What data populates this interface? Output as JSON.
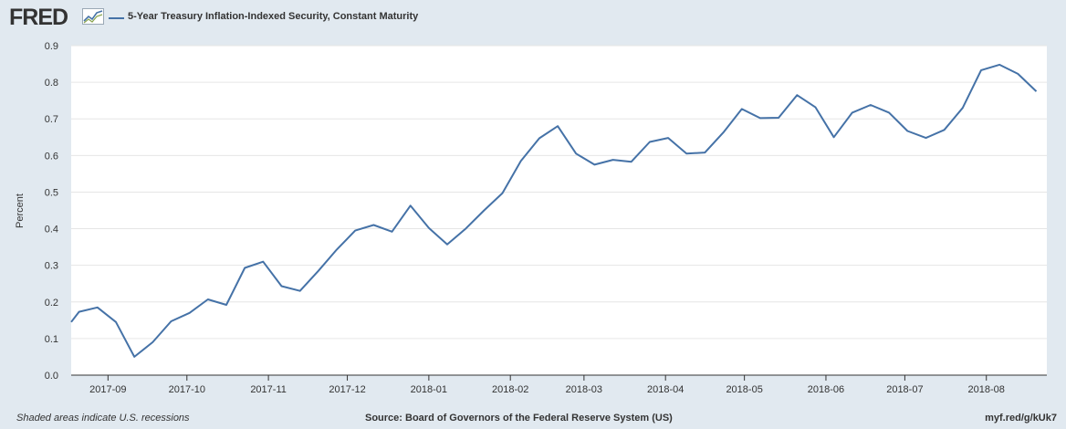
{
  "header": {
    "logo": "FRED",
    "series_name": "5-Year Treasury Inflation-Indexed Security, Constant Maturity"
  },
  "footer": {
    "recession_note": "Shaded areas indicate U.S. recessions",
    "source": "Source: Board of Governors of the Federal Reserve System (US)",
    "short_url": "myf.red/g/kUk7"
  },
  "colors": {
    "background": "#e1e9f0",
    "plot_background": "#ffffff",
    "series": "#4572a7",
    "grid": "#e6e6e6",
    "text": "#333333"
  },
  "chart_data": {
    "type": "line",
    "ylabel": "Percent",
    "xlabel": "",
    "ylim": [
      0,
      0.9
    ],
    "yticks": [
      "0.0",
      "0.1",
      "0.2",
      "0.3",
      "0.4",
      "0.5",
      "0.6",
      "0.7",
      "0.8",
      "0.9"
    ],
    "xlim": [
      "2017-08-18",
      "2018-08-24"
    ],
    "xticks": [
      {
        "date": "2017-09-01",
        "label": "2017-09"
      },
      {
        "date": "2017-10-01",
        "label": "2017-10"
      },
      {
        "date": "2017-11-01",
        "label": "2017-11"
      },
      {
        "date": "2017-12-01",
        "label": "2017-12"
      },
      {
        "date": "2018-01-01",
        "label": "2018-01"
      },
      {
        "date": "2018-02-01",
        "label": "2018-02"
      },
      {
        "date": "2018-03-01",
        "label": "2018-03"
      },
      {
        "date": "2018-04-01",
        "label": "2018-04"
      },
      {
        "date": "2018-05-01",
        "label": "2018-05"
      },
      {
        "date": "2018-06-01",
        "label": "2018-06"
      },
      {
        "date": "2018-07-01",
        "label": "2018-07"
      },
      {
        "date": "2018-08-01",
        "label": "2018-08"
      }
    ],
    "grid": true,
    "series": [
      {
        "name": "5-Year Treasury Inflation-Indexed Security, Constant Maturity",
        "points": [
          {
            "x": "2017-08-18",
            "y": 0.145
          },
          {
            "x": "2017-08-21",
            "y": 0.173
          },
          {
            "x": "2017-08-28",
            "y": 0.185
          },
          {
            "x": "2017-09-04",
            "y": 0.145
          },
          {
            "x": "2017-09-11",
            "y": 0.05
          },
          {
            "x": "2017-09-18",
            "y": 0.09
          },
          {
            "x": "2017-09-25",
            "y": 0.147
          },
          {
            "x": "2017-10-02",
            "y": 0.17
          },
          {
            "x": "2017-10-09",
            "y": 0.207
          },
          {
            "x": "2017-10-16",
            "y": 0.192
          },
          {
            "x": "2017-10-23",
            "y": 0.293
          },
          {
            "x": "2017-10-30",
            "y": 0.31
          },
          {
            "x": "2017-11-06",
            "y": 0.243
          },
          {
            "x": "2017-11-13",
            "y": 0.23
          },
          {
            "x": "2017-11-20",
            "y": 0.285
          },
          {
            "x": "2017-11-27",
            "y": 0.343
          },
          {
            "x": "2017-12-04",
            "y": 0.395
          },
          {
            "x": "2017-12-11",
            "y": 0.41
          },
          {
            "x": "2017-12-18",
            "y": 0.392
          },
          {
            "x": "2017-12-25",
            "y": 0.463
          },
          {
            "x": "2018-01-01",
            "y": 0.402
          },
          {
            "x": "2018-01-08",
            "y": 0.357
          },
          {
            "x": "2018-01-15",
            "y": 0.4
          },
          {
            "x": "2018-01-22",
            "y": 0.45
          },
          {
            "x": "2018-01-29",
            "y": 0.497
          },
          {
            "x": "2018-02-05",
            "y": 0.585
          },
          {
            "x": "2018-02-12",
            "y": 0.647
          },
          {
            "x": "2018-02-19",
            "y": 0.68
          },
          {
            "x": "2018-02-26",
            "y": 0.605
          },
          {
            "x": "2018-03-05",
            "y": 0.575
          },
          {
            "x": "2018-03-12",
            "y": 0.588
          },
          {
            "x": "2018-03-19",
            "y": 0.583
          },
          {
            "x": "2018-03-26",
            "y": 0.637
          },
          {
            "x": "2018-04-02",
            "y": 0.648
          },
          {
            "x": "2018-04-09",
            "y": 0.605
          },
          {
            "x": "2018-04-16",
            "y": 0.608
          },
          {
            "x": "2018-04-23",
            "y": 0.663
          },
          {
            "x": "2018-04-30",
            "y": 0.727
          },
          {
            "x": "2018-05-07",
            "y": 0.702
          },
          {
            "x": "2018-05-14",
            "y": 0.703
          },
          {
            "x": "2018-05-21",
            "y": 0.765
          },
          {
            "x": "2018-05-28",
            "y": 0.732
          },
          {
            "x": "2018-06-04",
            "y": 0.65
          },
          {
            "x": "2018-06-11",
            "y": 0.717
          },
          {
            "x": "2018-06-18",
            "y": 0.738
          },
          {
            "x": "2018-06-25",
            "y": 0.717
          },
          {
            "x": "2018-07-02",
            "y": 0.667
          },
          {
            "x": "2018-07-09",
            "y": 0.648
          },
          {
            "x": "2018-07-16",
            "y": 0.67
          },
          {
            "x": "2018-07-23",
            "y": 0.73
          },
          {
            "x": "2018-07-30",
            "y": 0.833
          },
          {
            "x": "2018-08-06",
            "y": 0.848
          },
          {
            "x": "2018-08-13",
            "y": 0.823
          },
          {
            "x": "2018-08-20",
            "y": 0.775
          }
        ]
      }
    ]
  }
}
